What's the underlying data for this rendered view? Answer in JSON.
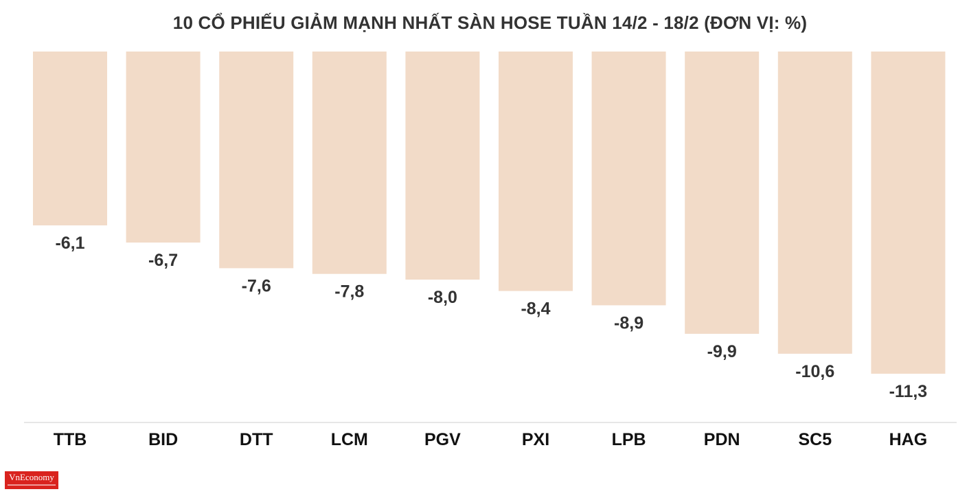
{
  "chart_data": {
    "type": "bar",
    "title": "10 CỔ PHIẾU GIẢM MẠNH NHẤT SÀN HOSE TUẦN 14/2 - 18/2 (ĐƠN VỊ: %)",
    "categories": [
      "TTB",
      "BID",
      "DTT",
      "LCM",
      "PGV",
      "PXI",
      "LPB",
      "PDN",
      "SC5",
      "HAG"
    ],
    "values": [
      -6.1,
      -6.7,
      -7.6,
      -7.8,
      -8.0,
      -8.4,
      -8.9,
      -9.9,
      -10.6,
      -11.3
    ],
    "value_labels": [
      "-6,1",
      "-6,7",
      "-7,6",
      "-7,8",
      "-8,0",
      "-8,4",
      "-8,9",
      "-9,9",
      "-10,6",
      "-11,3"
    ],
    "bar_color": "#f2dbc8",
    "grid": false,
    "legend": "none"
  },
  "logo": {
    "text": "VnEconomy"
  }
}
